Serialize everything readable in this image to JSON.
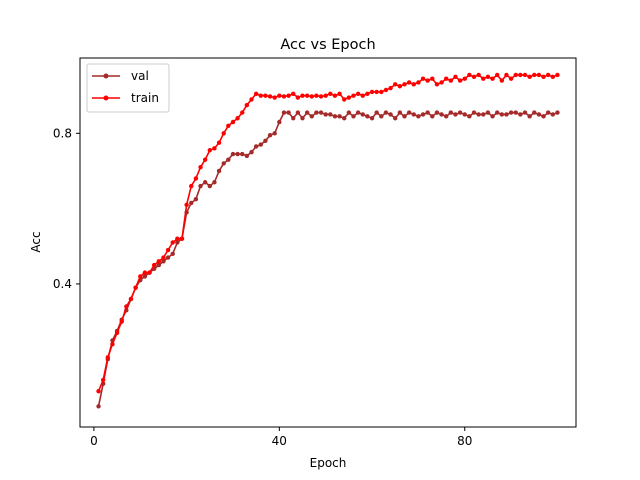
{
  "chart_data": {
    "type": "line",
    "title": "Acc vs Epoch",
    "xlabel": "Epoch",
    "ylabel": "Acc",
    "xlim": [
      -3,
      104
    ],
    "ylim": [
      0.02,
      1.0
    ],
    "xticks": [
      0,
      40,
      80
    ],
    "yticks": [
      0.4,
      0.8
    ],
    "xtick_labels": [
      "0",
      "40",
      "80"
    ],
    "ytick_labels": [
      "0.4",
      "0.8"
    ],
    "grid": false,
    "legend_position": "upper-left",
    "x": [
      1,
      2,
      3,
      4,
      5,
      6,
      7,
      8,
      9,
      10,
      11,
      12,
      13,
      14,
      15,
      16,
      17,
      18,
      19,
      20,
      21,
      22,
      23,
      24,
      25,
      26,
      27,
      28,
      29,
      30,
      31,
      32,
      33,
      34,
      35,
      36,
      37,
      38,
      39,
      40,
      41,
      42,
      43,
      44,
      45,
      46,
      47,
      48,
      49,
      50,
      51,
      52,
      53,
      54,
      55,
      56,
      57,
      58,
      59,
      60,
      61,
      62,
      63,
      64,
      65,
      66,
      67,
      68,
      69,
      70,
      71,
      72,
      73,
      74,
      75,
      76,
      77,
      78,
      79,
      80,
      81,
      82,
      83,
      84,
      85,
      86,
      87,
      88,
      89,
      90,
      91,
      92,
      93,
      94,
      95,
      96,
      97,
      98,
      99,
      100
    ],
    "series": [
      {
        "name": "val",
        "color": "#a52a2a",
        "values": [
          0.075,
          0.135,
          0.2,
          0.25,
          0.275,
          0.305,
          0.33,
          0.36,
          0.39,
          0.41,
          0.42,
          0.43,
          0.44,
          0.45,
          0.46,
          0.47,
          0.48,
          0.51,
          0.52,
          0.59,
          0.615,
          0.625,
          0.66,
          0.67,
          0.66,
          0.67,
          0.7,
          0.72,
          0.73,
          0.745,
          0.745,
          0.745,
          0.74,
          0.75,
          0.765,
          0.77,
          0.78,
          0.795,
          0.8,
          0.83,
          0.855,
          0.855,
          0.84,
          0.855,
          0.84,
          0.855,
          0.845,
          0.855,
          0.855,
          0.85,
          0.85,
          0.845,
          0.845,
          0.84,
          0.855,
          0.845,
          0.855,
          0.85,
          0.845,
          0.84,
          0.855,
          0.845,
          0.855,
          0.85,
          0.84,
          0.855,
          0.845,
          0.855,
          0.85,
          0.845,
          0.85,
          0.855,
          0.845,
          0.855,
          0.85,
          0.845,
          0.855,
          0.85,
          0.855,
          0.85,
          0.845,
          0.855,
          0.85,
          0.85,
          0.855,
          0.845,
          0.855,
          0.85,
          0.85,
          0.855,
          0.855,
          0.85,
          0.855,
          0.845,
          0.855,
          0.85,
          0.845,
          0.855,
          0.85,
          0.855
        ]
      },
      {
        "name": "train",
        "color": "#ff0000",
        "values": [
          0.115,
          0.145,
          0.205,
          0.24,
          0.27,
          0.3,
          0.34,
          0.36,
          0.39,
          0.42,
          0.43,
          0.43,
          0.45,
          0.46,
          0.47,
          0.49,
          0.51,
          0.52,
          0.52,
          0.61,
          0.66,
          0.68,
          0.71,
          0.73,
          0.755,
          0.76,
          0.775,
          0.8,
          0.82,
          0.83,
          0.84,
          0.855,
          0.875,
          0.89,
          0.905,
          0.9,
          0.9,
          0.898,
          0.895,
          0.9,
          0.898,
          0.9,
          0.905,
          0.895,
          0.9,
          0.9,
          0.898,
          0.9,
          0.898,
          0.9,
          0.905,
          0.9,
          0.905,
          0.89,
          0.895,
          0.9,
          0.905,
          0.9,
          0.905,
          0.91,
          0.91,
          0.91,
          0.915,
          0.92,
          0.93,
          0.925,
          0.93,
          0.935,
          0.93,
          0.935,
          0.945,
          0.94,
          0.945,
          0.93,
          0.935,
          0.945,
          0.94,
          0.95,
          0.94,
          0.945,
          0.955,
          0.95,
          0.955,
          0.945,
          0.95,
          0.945,
          0.955,
          0.94,
          0.955,
          0.945,
          0.955,
          0.955,
          0.955,
          0.95,
          0.955,
          0.955,
          0.95,
          0.955,
          0.95,
          0.955
        ]
      }
    ]
  }
}
